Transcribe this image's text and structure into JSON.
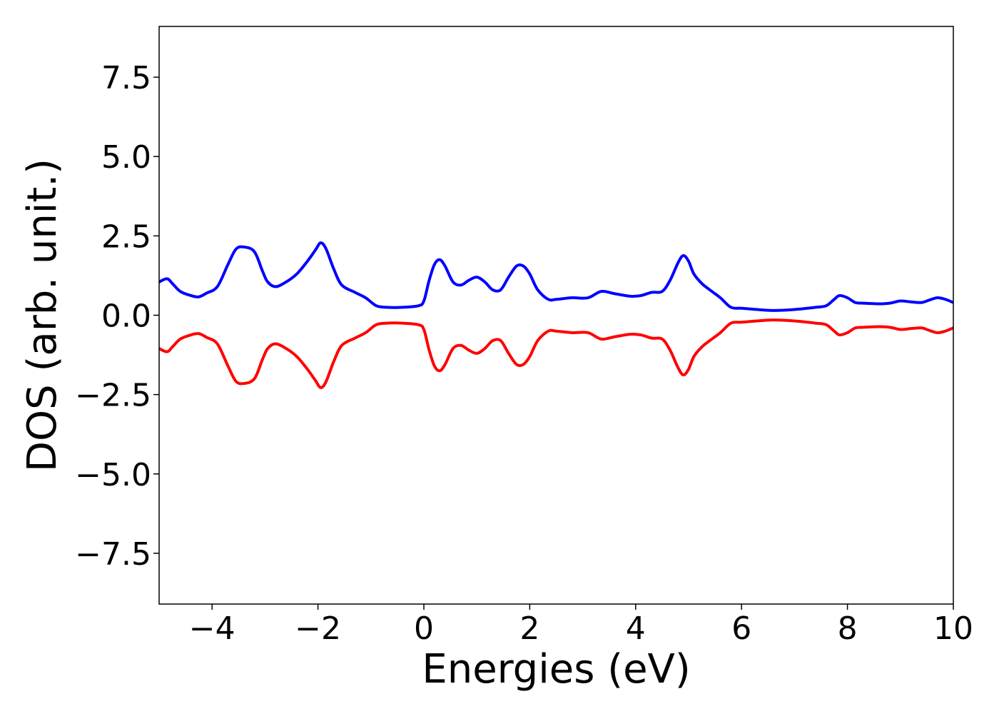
{
  "chart_data": {
    "type": "line",
    "title": "",
    "xlabel": "Energies (eV)",
    "ylabel": "DOS (arb. unit.)",
    "xlim": [
      -5,
      10
    ],
    "ylim": [
      -9.1,
      9.1
    ],
    "grid": false,
    "legend": "none",
    "x_ticks": [
      {
        "value": -4,
        "label": "−4"
      },
      {
        "value": -2,
        "label": "−2"
      },
      {
        "value": 0,
        "label": "0"
      },
      {
        "value": 2,
        "label": "2"
      },
      {
        "value": 4,
        "label": "4"
      },
      {
        "value": 6,
        "label": "6"
      },
      {
        "value": 8,
        "label": "8"
      },
      {
        "value": 10,
        "label": "10"
      }
    ],
    "y_ticks": [
      {
        "value": 7.5,
        "label": "7.5"
      },
      {
        "value": 5.0,
        "label": "5.0"
      },
      {
        "value": 2.5,
        "label": "2.5"
      },
      {
        "value": 0.0,
        "label": "0.0"
      },
      {
        "value": -2.5,
        "label": "−2.5"
      },
      {
        "value": -5.0,
        "label": "−5.0"
      },
      {
        "value": -7.5,
        "label": "−7.5"
      }
    ],
    "series": [
      {
        "color": "#0000ff",
        "x": [
          -5.0,
          -4.85,
          -4.75,
          -4.6,
          -4.4,
          -4.25,
          -4.1,
          -3.9,
          -3.7,
          -3.55,
          -3.4,
          -3.2,
          -3.05,
          -2.95,
          -2.8,
          -2.6,
          -2.4,
          -2.2,
          -2.05,
          -1.95,
          -1.85,
          -1.7,
          -1.55,
          -1.3,
          -1.1,
          -0.9,
          -0.7,
          -0.4,
          -0.1,
          0.0,
          0.1,
          0.2,
          0.3,
          0.4,
          0.55,
          0.7,
          0.85,
          1.0,
          1.15,
          1.3,
          1.45,
          1.6,
          1.75,
          1.88,
          2.0,
          2.15,
          2.35,
          2.5,
          2.8,
          3.1,
          3.35,
          3.6,
          3.9,
          4.1,
          4.3,
          4.5,
          4.65,
          4.8,
          4.9,
          5.0,
          5.1,
          5.25,
          5.4,
          5.6,
          5.8,
          6.0,
          6.3,
          6.6,
          7.0,
          7.4,
          7.6,
          7.75,
          7.85,
          8.0,
          8.15,
          8.3,
          8.6,
          8.8,
          9.0,
          9.2,
          9.4,
          9.55,
          9.7,
          9.85,
          10.0
        ],
        "y": [
          1.05,
          1.15,
          1.0,
          0.75,
          0.62,
          0.58,
          0.7,
          0.9,
          1.6,
          2.08,
          2.15,
          2.0,
          1.4,
          1.05,
          0.9,
          1.05,
          1.3,
          1.7,
          2.05,
          2.28,
          2.1,
          1.45,
          0.95,
          0.72,
          0.55,
          0.3,
          0.25,
          0.25,
          0.3,
          0.45,
          1.1,
          1.6,
          1.75,
          1.55,
          1.05,
          0.95,
          1.1,
          1.2,
          1.05,
          0.8,
          0.8,
          1.2,
          1.55,
          1.55,
          1.3,
          0.8,
          0.5,
          0.5,
          0.55,
          0.55,
          0.75,
          0.68,
          0.6,
          0.62,
          0.72,
          0.75,
          1.1,
          1.65,
          1.88,
          1.7,
          1.3,
          1.0,
          0.8,
          0.55,
          0.25,
          0.22,
          0.18,
          0.15,
          0.18,
          0.25,
          0.3,
          0.5,
          0.62,
          0.55,
          0.4,
          0.38,
          0.36,
          0.38,
          0.45,
          0.42,
          0.4,
          0.48,
          0.55,
          0.5,
          0.4
        ]
      },
      {
        "color": "#ff0000",
        "x": [
          -5.0,
          -4.85,
          -4.75,
          -4.6,
          -4.4,
          -4.25,
          -4.1,
          -3.9,
          -3.7,
          -3.55,
          -3.4,
          -3.2,
          -3.05,
          -2.95,
          -2.8,
          -2.6,
          -2.4,
          -2.2,
          -2.05,
          -1.95,
          -1.85,
          -1.7,
          -1.55,
          -1.3,
          -1.1,
          -0.9,
          -0.7,
          -0.4,
          -0.1,
          0.0,
          0.1,
          0.2,
          0.3,
          0.4,
          0.55,
          0.7,
          0.85,
          1.0,
          1.15,
          1.3,
          1.45,
          1.6,
          1.75,
          1.88,
          2.0,
          2.15,
          2.35,
          2.5,
          2.8,
          3.1,
          3.35,
          3.6,
          3.9,
          4.1,
          4.3,
          4.5,
          4.65,
          4.8,
          4.9,
          5.0,
          5.1,
          5.25,
          5.4,
          5.6,
          5.8,
          6.0,
          6.3,
          6.6,
          7.0,
          7.4,
          7.6,
          7.75,
          7.85,
          8.0,
          8.15,
          8.3,
          8.6,
          8.8,
          9.0,
          9.2,
          9.4,
          9.55,
          9.7,
          9.85,
          10.0
        ],
        "y": [
          -1.05,
          -1.15,
          -1.0,
          -0.75,
          -0.62,
          -0.58,
          -0.7,
          -0.9,
          -1.6,
          -2.08,
          -2.15,
          -2.0,
          -1.4,
          -1.05,
          -0.9,
          -1.05,
          -1.3,
          -1.7,
          -2.05,
          -2.28,
          -2.1,
          -1.45,
          -0.95,
          -0.72,
          -0.55,
          -0.3,
          -0.25,
          -0.25,
          -0.3,
          -0.45,
          -1.1,
          -1.6,
          -1.75,
          -1.55,
          -1.05,
          -0.95,
          -1.1,
          -1.2,
          -1.05,
          -0.8,
          -0.8,
          -1.2,
          -1.55,
          -1.55,
          -1.3,
          -0.8,
          -0.5,
          -0.5,
          -0.55,
          -0.55,
          -0.75,
          -0.68,
          -0.6,
          -0.62,
          -0.72,
          -0.75,
          -1.1,
          -1.65,
          -1.88,
          -1.7,
          -1.3,
          -1.0,
          -0.8,
          -0.55,
          -0.25,
          -0.22,
          -0.18,
          -0.15,
          -0.18,
          -0.25,
          -0.3,
          -0.5,
          -0.62,
          -0.55,
          -0.4,
          -0.38,
          -0.36,
          -0.38,
          -0.45,
          -0.42,
          -0.4,
          -0.48,
          -0.55,
          -0.5,
          -0.4
        ]
      }
    ]
  }
}
